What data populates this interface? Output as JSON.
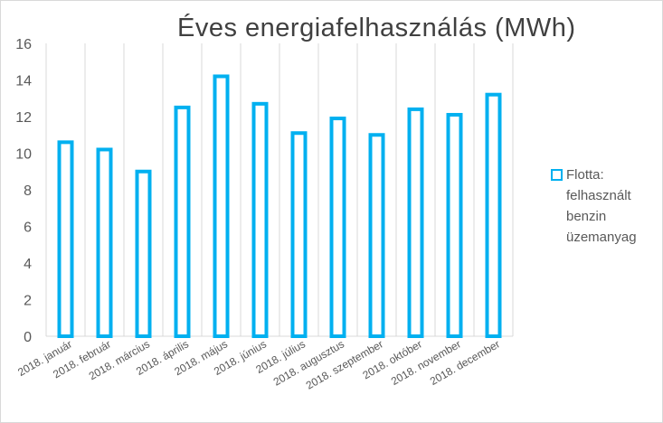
{
  "chart_data": {
    "type": "bar",
    "title": "Éves energiafelhasználás (MWh)",
    "xlabel": "",
    "ylabel": "",
    "ylim": [
      0,
      16
    ],
    "yticks": [
      0,
      2,
      4,
      6,
      8,
      10,
      12,
      14,
      16
    ],
    "grid": "vertical",
    "legend_position": "right",
    "categories": [
      "2018. január",
      "2018. február",
      "2018. március",
      "2018. április",
      "2018. május",
      "2018. június",
      "2018. július",
      "2018. augusztus",
      "2018. szeptember",
      "2018. október",
      "2018. november",
      "2018. december"
    ],
    "series": [
      {
        "name": "Flotta: felhasznált benzin üzemanyag",
        "color": "#00b0f0",
        "values": [
          10.6,
          10.2,
          9.0,
          12.5,
          14.2,
          12.7,
          11.1,
          11.9,
          11.0,
          12.4,
          12.1,
          13.2
        ]
      }
    ]
  }
}
